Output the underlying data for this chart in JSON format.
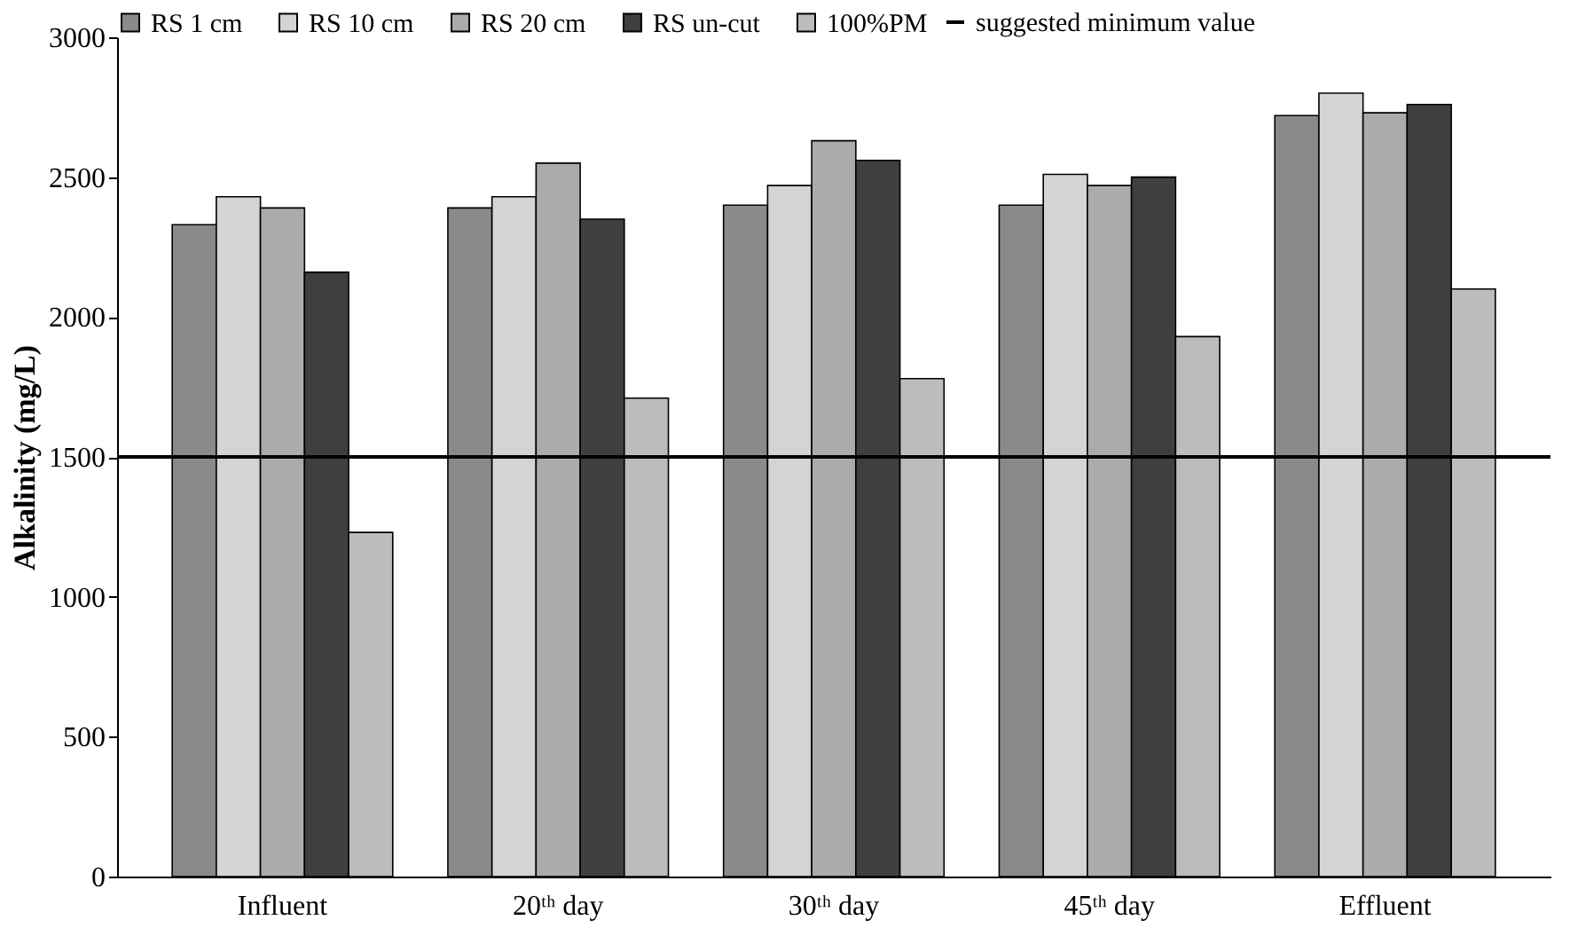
{
  "chart_data": {
    "type": "bar",
    "ylabel": "Alkalinity (mg/L)",
    "categories": [
      "Influent",
      "20ᵗʰ day",
      "30ᵗʰ day",
      "45ᵗʰ day",
      "Effluent"
    ],
    "series": [
      {
        "name": "RS 1 cm",
        "color": "#8a8a8a",
        "values": [
          2330,
          2390,
          2400,
          2400,
          2720
        ]
      },
      {
        "name": "RS 10 cm",
        "color": "#d4d4d4",
        "values": [
          2430,
          2430,
          2470,
          2510,
          2800
        ]
      },
      {
        "name": "RS 20 cm",
        "color": "#ababab",
        "values": [
          2390,
          2550,
          2630,
          2470,
          2730
        ]
      },
      {
        "name": "RS un-cut",
        "color": "#3f3f3f",
        "values": [
          2160,
          2350,
          2560,
          2500,
          2760
        ]
      },
      {
        "name": "100%PM",
        "color": "#bcbcbc",
        "values": [
          1230,
          1710,
          1780,
          1930,
          2100
        ]
      }
    ],
    "ylim": [
      0,
      3000
    ],
    "yticks": [
      0,
      500,
      1000,
      1500,
      2000,
      2500,
      3000
    ],
    "ref_lines": [
      {
        "axis": "y",
        "value": 1500,
        "label": "suggested minimum value",
        "color": "#000000",
        "line_style": "solid"
      }
    ],
    "legend": "top",
    "grid": false
  }
}
